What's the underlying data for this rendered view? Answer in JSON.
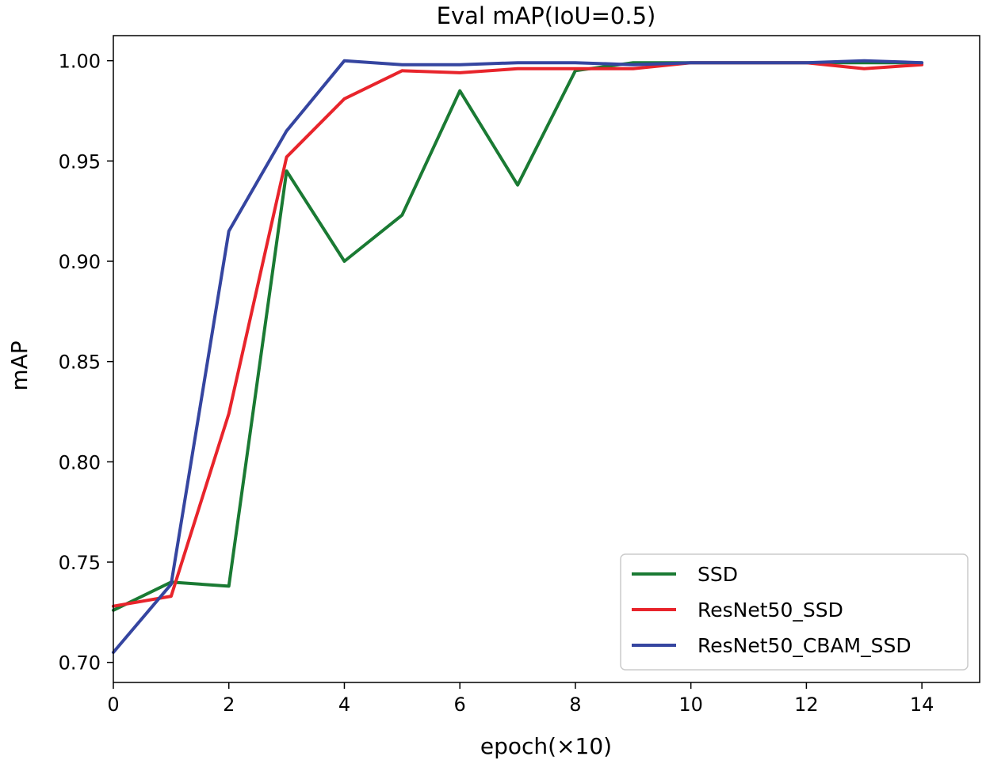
{
  "chart_data": {
    "type": "line",
    "title": "Eval mAP(IoU=0.5)",
    "xlabel": "epoch(×10)",
    "ylabel": "mAP",
    "xlim": [
      0,
      15
    ],
    "ylim": [
      0.69,
      1.0125
    ],
    "x_ticks": [
      0,
      2,
      4,
      6,
      8,
      10,
      12,
      14
    ],
    "x_tick_labels": [
      "0",
      "2",
      "4",
      "6",
      "8",
      "10",
      "12",
      "14"
    ],
    "y_ticks": [
      0.7,
      0.75,
      0.8,
      0.85,
      0.9,
      0.95,
      1.0
    ],
    "y_tick_labels": [
      "0.70",
      "0.75",
      "0.80",
      "0.85",
      "0.90",
      "0.95",
      "1.00"
    ],
    "grid": false,
    "legend_position": "lower-right",
    "x": [
      0,
      1,
      2,
      3,
      4,
      5,
      6,
      7,
      8,
      9,
      10,
      11,
      12,
      13,
      14
    ],
    "series": [
      {
        "name": "SSD",
        "color": "#1a7a33",
        "values": [
          0.726,
          0.74,
          0.738,
          0.945,
          0.9,
          0.923,
          0.985,
          0.938,
          0.995,
          0.999,
          0.999,
          0.999,
          0.999,
          0.999,
          0.999
        ]
      },
      {
        "name": "ResNet50_SSD",
        "color": "#e8242b",
        "values": [
          0.728,
          0.733,
          0.824,
          0.952,
          0.981,
          0.995,
          0.994,
          0.996,
          0.996,
          0.996,
          0.999,
          0.999,
          0.999,
          0.996,
          0.998
        ]
      },
      {
        "name": "ResNet50_CBAM_SSD",
        "color": "#3545a0",
        "values": [
          0.705,
          0.739,
          0.915,
          0.965,
          1.0,
          0.998,
          0.998,
          0.999,
          0.999,
          0.998,
          0.999,
          0.999,
          0.999,
          1.0,
          0.999
        ]
      }
    ]
  }
}
